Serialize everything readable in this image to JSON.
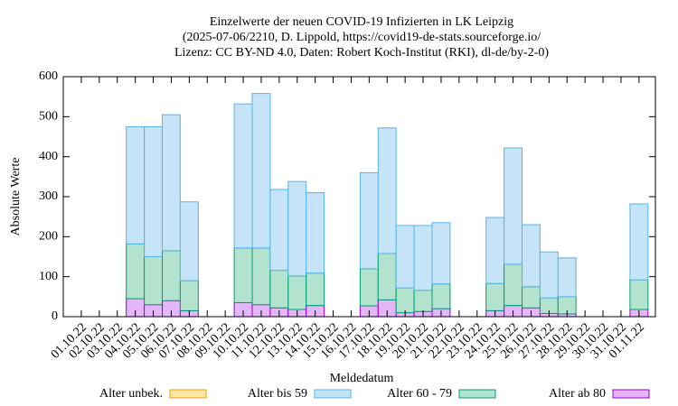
{
  "chart_data": {
    "type": "bar",
    "stacked": true,
    "title": [
      "Einzelwerte der neuen COVID-19 Infizierten in LK Leipzig",
      "(2025-07-06/2210, D. Lippold, https://covid19-de-stats.sourceforge.io/",
      "Lizenz: CC BY-ND 4.0, Daten: Robert Koch-Institut (RKI), dl-de/by-2-0)"
    ],
    "x_label": "Meldedatum",
    "y_label": "Absolute Werte",
    "categories": [
      "01.10.22",
      "02.10.22",
      "03.10.22",
      "04.10.22",
      "05.10.22",
      "06.10.22",
      "07.10.22",
      "08.10.22",
      "09.10.22",
      "10.10.22",
      "11.10.22",
      "12.10.22",
      "13.10.22",
      "14.10.22",
      "15.10.22",
      "16.10.22",
      "17.10.22",
      "18.10.22",
      "19.10.22",
      "20.10.22",
      "21.10.22",
      "22.10.22",
      "23.10.22",
      "24.10.22",
      "25.10.22",
      "26.10.22",
      "27.10.22",
      "28.10.22",
      "29.10.22",
      "30.10.22",
      "31.10.22",
      "01.11.22"
    ],
    "series": [
      {
        "name": "Alter unbek.",
        "color": "#fde7a8",
        "edge": "#e6a000",
        "values": [
          0,
          0,
          0,
          0,
          0,
          0,
          0,
          0,
          0,
          0,
          0,
          0,
          0,
          0,
          0,
          0,
          0,
          0,
          0,
          0,
          0,
          0,
          0,
          0,
          0,
          0,
          0,
          0,
          0,
          0,
          0,
          0
        ]
      },
      {
        "name": "Alter bis 59",
        "color": "#c6e4f8",
        "edge": "#56b4e9",
        "values": [
          0,
          0,
          0,
          293,
          325,
          340,
          197,
          0,
          0,
          360,
          386,
          202,
          236,
          201,
          0,
          0,
          240,
          314,
          156,
          162,
          153,
          0,
          0,
          165,
          291,
          155,
          115,
          97,
          0,
          0,
          0,
          190
        ]
      },
      {
        "name": "Alter 60 - 79",
        "color": "#b3e3cf",
        "edge": "#009e73",
        "values": [
          0,
          0,
          0,
          137,
          120,
          125,
          75,
          0,
          0,
          137,
          142,
          94,
          84,
          81,
          0,
          0,
          93,
          116,
          62,
          53,
          62,
          0,
          0,
          68,
          103,
          53,
          39,
          43,
          0,
          0,
          0,
          74
        ]
      },
      {
        "name": "Alter ab 80",
        "color": "#e3b6f7",
        "edge": "#9400d3",
        "values": [
          0,
          0,
          0,
          45,
          30,
          40,
          15,
          0,
          0,
          35,
          30,
          22,
          18,
          28,
          0,
          0,
          27,
          42,
          10,
          13,
          20,
          0,
          0,
          15,
          28,
          22,
          8,
          7,
          0,
          0,
          0,
          18
        ]
      }
    ],
    "ylim": [
      0,
      600
    ],
    "yticks": [
      0,
      100,
      200,
      300,
      400,
      500,
      600
    ],
    "legend": "bottom"
  }
}
